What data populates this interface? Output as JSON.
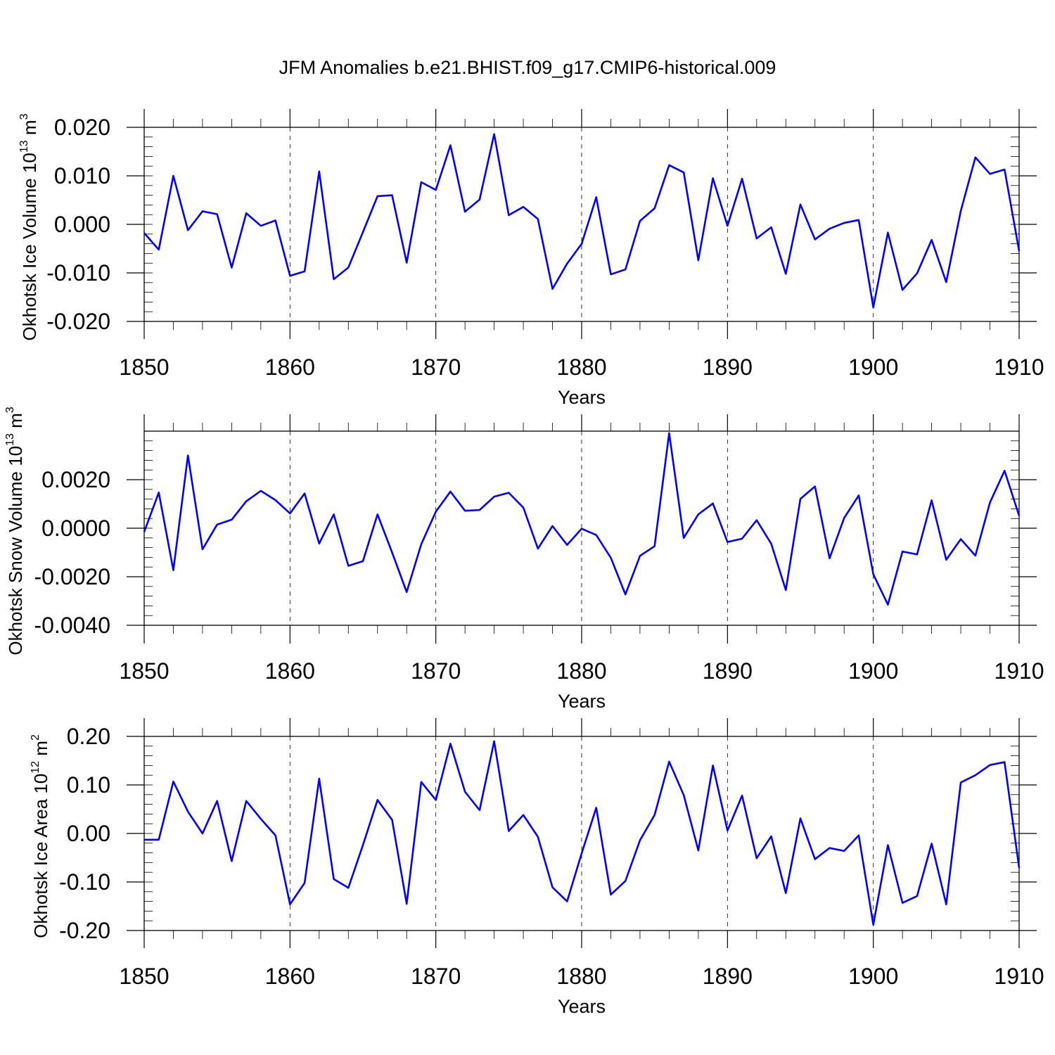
{
  "title": "JFM Anomalies b.e21.BHIST.f09_g17.CMIP6-historical.009",
  "chart_data": [
    {
      "type": "line",
      "ylabel": {
        "text": "Okhotsk Ice Volume 10",
        "exp": "13",
        "unit": " m",
        "unit_exp": "3"
      },
      "xlabel": "Years",
      "xlim": [
        1850,
        1910
      ],
      "ylim": [
        -0.02,
        0.02
      ],
      "xticks": [
        1850,
        1860,
        1870,
        1880,
        1890,
        1900,
        1910
      ],
      "xtick_labels": [
        "1850",
        "1860",
        "1870",
        "1880",
        "1890",
        "1900",
        "1910"
      ],
      "yticks": [
        -0.02,
        -0.01,
        0.0,
        0.01,
        0.02
      ],
      "ytick_labels": [
        "-0.020",
        "-0.010",
        "0.000",
        "0.010",
        "0.020"
      ],
      "grid": "dashed vertical at major x ticks",
      "series": [
        {
          "name": "Okhotsk Ice Volume",
          "color": "#0000ff",
          "x_start": 1850,
          "values": [
            -0.0018,
            -0.0052,
            0.01,
            -0.0012,
            0.0027,
            0.0021,
            -0.0089,
            0.0023,
            -0.0003,
            0.0008,
            -0.0106,
            -0.0097,
            0.0109,
            -0.0113,
            -0.0089,
            -0.0016,
            0.0058,
            0.006,
            -0.0079,
            0.0087,
            0.0071,
            0.0163,
            0.0026,
            0.0051,
            0.0186,
            0.0019,
            0.0036,
            0.0011,
            -0.0133,
            -0.0081,
            -0.004,
            0.0056,
            -0.0103,
            -0.0093,
            0.0007,
            0.0033,
            0.0122,
            0.0107,
            -0.0074,
            0.0095,
            -0.0003,
            0.0094,
            -0.0029,
            -0.0006,
            -0.0102,
            0.0041,
            -0.0031,
            -0.0009,
            0.0003,
            0.0009,
            -0.0171,
            -0.0017,
            -0.0135,
            -0.0101,
            -0.0032,
            -0.0119,
            0.0028,
            0.0138,
            0.0104,
            0.0113,
            -0.0055
          ]
        }
      ]
    },
    {
      "type": "line",
      "ylabel": {
        "text": "Okhotsk Snow Volume 10",
        "exp": "13",
        "unit": " m",
        "unit_exp": "3"
      },
      "xlabel": "Years",
      "xlim": [
        1850,
        1910
      ],
      "ylim": [
        -0.004,
        0.004
      ],
      "xticks": [
        1850,
        1860,
        1870,
        1880,
        1890,
        1900,
        1910
      ],
      "xtick_labels": [
        "1850",
        "1860",
        "1870",
        "1880",
        "1890",
        "1900",
        "1910"
      ],
      "yticks": [
        -0.004,
        -0.002,
        0.0,
        0.002
      ],
      "ytick_labels": [
        "-0.0040",
        "-0.0020",
        "0.0000",
        "0.0020"
      ],
      "grid": "dashed vertical at major x ticks",
      "series": [
        {
          "name": "Okhotsk Snow Volume",
          "color": "#0000ff",
          "x_start": 1850,
          "values": [
            -0.00015,
            0.00147,
            -0.00173,
            0.003,
            -0.00087,
            0.00015,
            0.00035,
            0.00111,
            0.00154,
            0.00116,
            0.00061,
            0.00143,
            -0.00063,
            0.00057,
            -0.00155,
            -0.00136,
            0.00057,
            -0.001,
            -0.00263,
            -0.00066,
            0.00068,
            0.00151,
            0.00072,
            0.00075,
            0.0013,
            0.00146,
            0.00085,
            -0.00084,
            9e-05,
            -0.00069,
            -2e-05,
            -0.00028,
            -0.00122,
            -0.00273,
            -0.00114,
            -0.00074,
            0.00392,
            -0.0004,
            0.00057,
            0.00102,
            -0.00057,
            -0.00043,
            0.00033,
            -0.00064,
            -0.00255,
            0.00121,
            0.00172,
            -0.00124,
            0.00042,
            0.00135,
            -0.0019,
            -0.00315,
            -0.00096,
            -0.00108,
            0.00115,
            -0.0013,
            -0.00045,
            -0.00113,
            0.00106,
            0.00237,
            0.00051
          ]
        }
      ]
    },
    {
      "type": "line",
      "ylabel": {
        "text": "Okhotsk Ice Area 10",
        "exp": "12",
        "unit": " m",
        "unit_exp": "2"
      },
      "xlabel": "Years",
      "xlim": [
        1850,
        1910
      ],
      "ylim": [
        -0.2,
        0.2
      ],
      "xticks": [
        1850,
        1860,
        1870,
        1880,
        1890,
        1900,
        1910
      ],
      "xtick_labels": [
        "1850",
        "1860",
        "1870",
        "1880",
        "1890",
        "1900",
        "1910"
      ],
      "yticks": [
        -0.2,
        -0.1,
        0.0,
        0.1,
        0.2
      ],
      "ytick_labels": [
        "-0.20",
        "-0.10",
        "0.00",
        "0.10",
        "0.20"
      ],
      "grid": "dashed vertical at major x ticks",
      "series": [
        {
          "name": "Okhotsk Ice Area",
          "color": "#0000ff",
          "x_start": 1850,
          "values": [
            -0.013,
            -0.013,
            0.107,
            0.045,
            0.0,
            0.067,
            -0.057,
            0.067,
            0.03,
            -0.004,
            -0.146,
            -0.102,
            0.113,
            -0.094,
            -0.112,
            -0.024,
            0.069,
            0.028,
            -0.145,
            0.106,
            0.069,
            0.185,
            0.086,
            0.048,
            0.19,
            0.005,
            0.038,
            -0.007,
            -0.111,
            -0.14,
            -0.041,
            0.053,
            -0.126,
            -0.098,
            -0.014,
            0.038,
            0.148,
            0.079,
            -0.035,
            0.14,
            0.006,
            0.078,
            -0.051,
            -0.006,
            -0.123,
            0.031,
            -0.053,
            -0.03,
            -0.036,
            -0.004,
            -0.188,
            -0.024,
            -0.143,
            -0.129,
            -0.021,
            -0.146,
            0.105,
            0.12,
            0.141,
            0.147,
            -0.071
          ]
        }
      ]
    }
  ]
}
